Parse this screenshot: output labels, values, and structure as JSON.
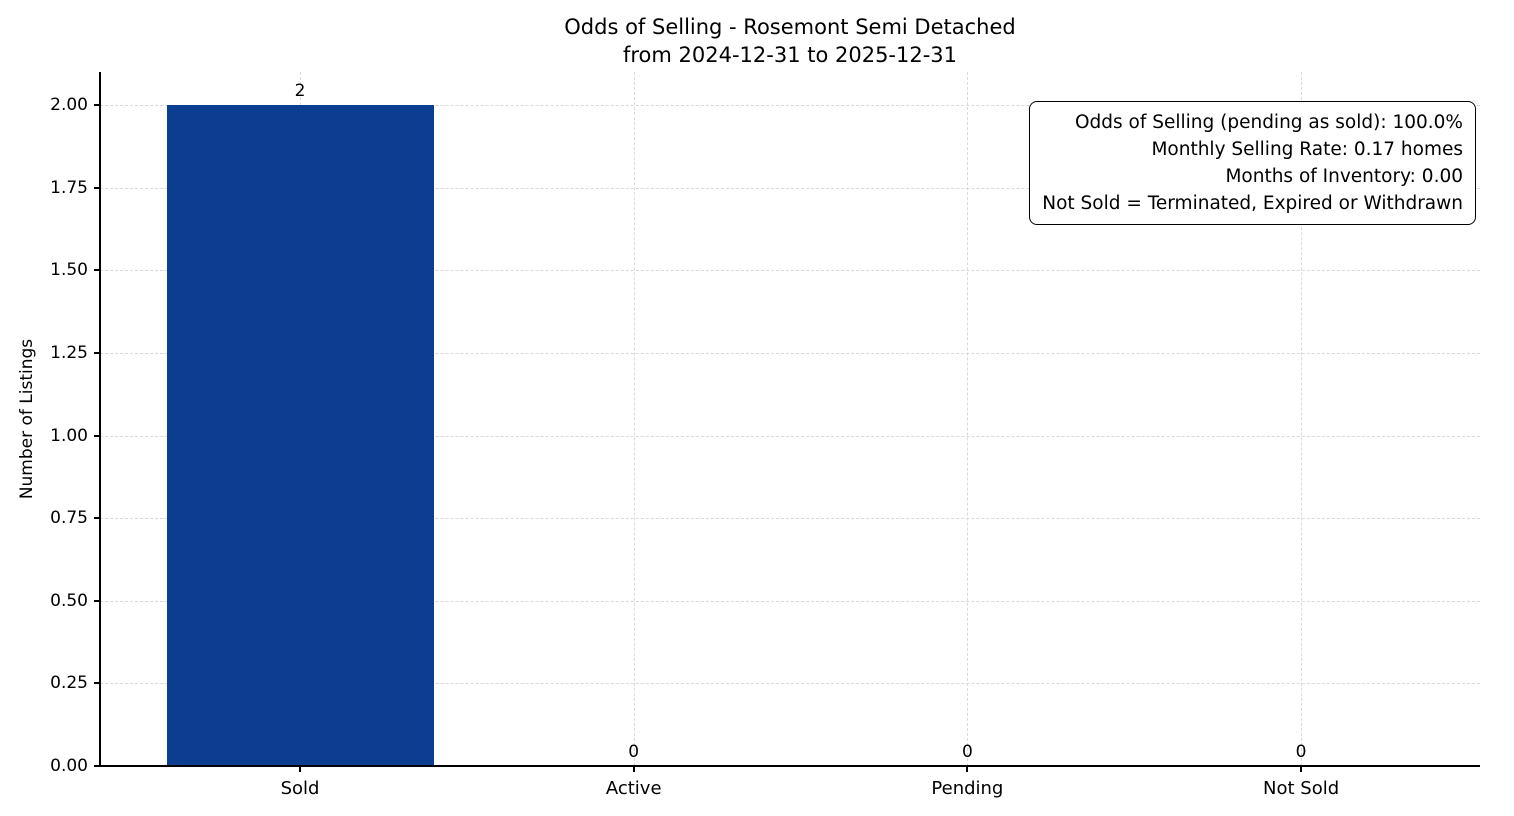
{
  "chart_data": {
    "type": "bar",
    "title": "Odds of Selling - Rosemont Semi Detached\nfrom 2024-12-31 to 2025-12-31",
    "categories": [
      "Sold",
      "Active",
      "Pending",
      "Not Sold"
    ],
    "values": [
      2,
      0,
      0,
      0
    ],
    "bar_labels": [
      "2",
      "0",
      "0",
      "0"
    ],
    "xlabel": "",
    "ylabel": "Number of Listings",
    "ylim": [
      0,
      2.1
    ],
    "yticks": [
      "0.00",
      "0.25",
      "0.50",
      "0.75",
      "1.00",
      "1.25",
      "1.50",
      "1.75",
      "2.00"
    ],
    "grid": true,
    "legend": false,
    "bar_color": "#0b3d91",
    "annotation_box": {
      "lines": [
        "Odds of Selling (pending as sold): 100.0%",
        "Monthly Selling Rate: 0.17 homes",
        "Months of Inventory: 0.00",
        "Not Sold = Terminated, Expired or Withdrawn"
      ]
    }
  }
}
